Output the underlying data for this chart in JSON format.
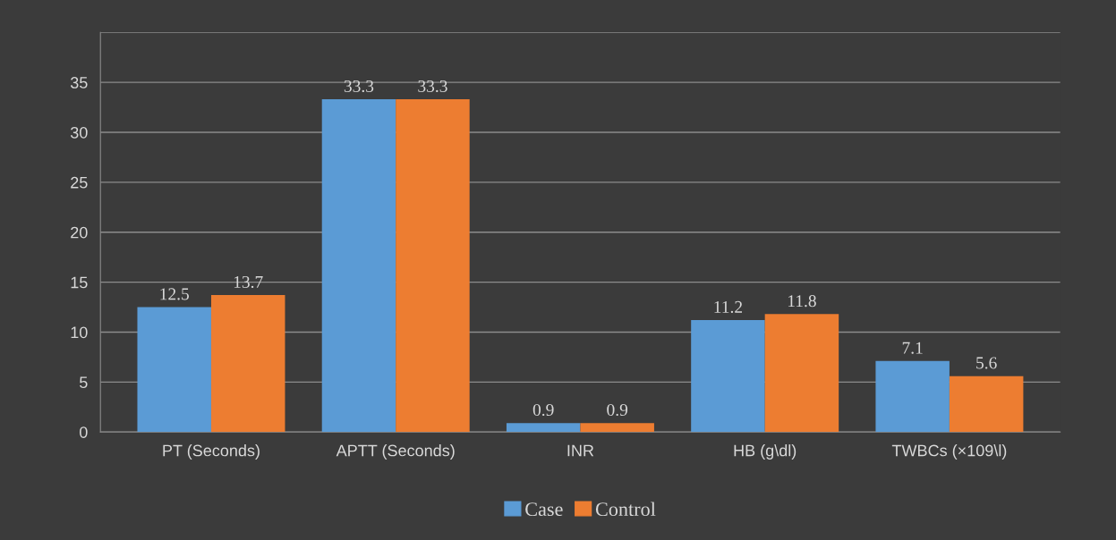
{
  "chart_data": {
    "type": "bar",
    "categories": [
      "PT (Seconds)",
      "APTT (Seconds)",
      "INR",
      "HB (g\\dl)",
      "TWBCs (×109\\l)"
    ],
    "series": [
      {
        "name": "Case",
        "color": "#5b9bd5",
        "values": [
          12.5,
          33.3,
          0.9,
          11.2,
          7.1
        ]
      },
      {
        "name": "Control",
        "color": "#ed7d31",
        "values": [
          13.7,
          33.3,
          0.9,
          11.8,
          5.6
        ]
      }
    ],
    "ylim": [
      0,
      40
    ],
    "yticks": [
      0,
      5,
      10,
      15,
      20,
      25,
      30,
      35,
      {
        "value": 40,
        "label": null
      }
    ],
    "grid": "y",
    "legend": "bottom",
    "data_labels": true
  }
}
